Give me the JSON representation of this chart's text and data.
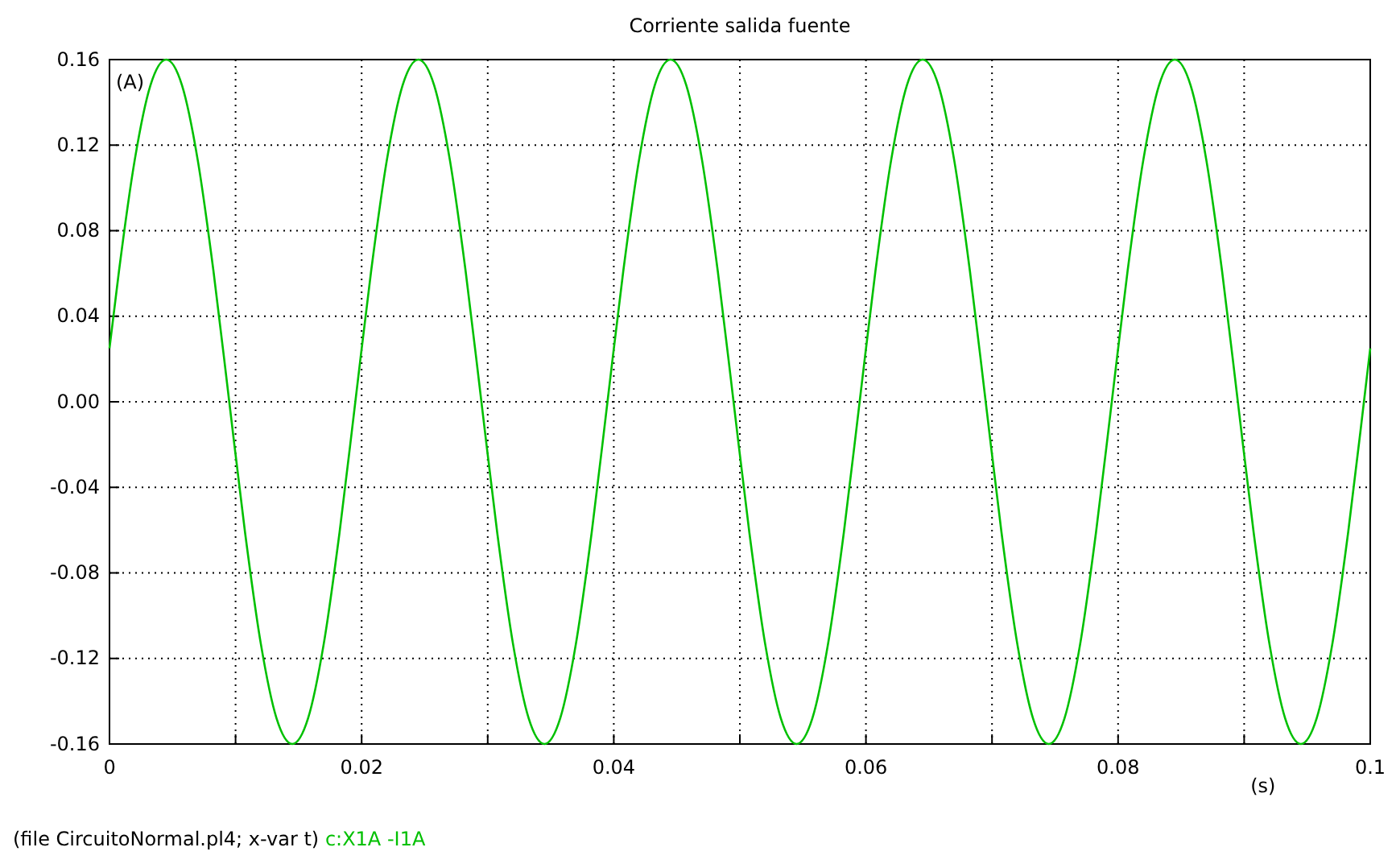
{
  "chart_data": {
    "type": "line",
    "title": "Corriente salida fuente",
    "xlabel": "(s)",
    "ylabel": "(A)",
    "annotations": [
      "(file CircuitoNormal.pl4; x-var t)"
    ],
    "x": [
      0,
      0.00075,
      0.002,
      0.00325,
      0.0045,
      0.00575,
      0.007,
      0.00825,
      0.0095,
      0.01075,
      0.012,
      0.01325,
      0.0145,
      0.01575,
      0.017,
      0.01825,
      0.0195,
      0.02075,
      0.022,
      0.02325,
      0.0245,
      0.02575,
      0.027,
      0.02825,
      0.0295,
      0.03075,
      0.032,
      0.03325,
      0.0345,
      0.03575,
      0.037,
      0.03825,
      0.0395,
      0.04075,
      0.042,
      0.04325,
      0.0445,
      0.04575,
      0.047,
      0.04825,
      0.0495,
      0.05075,
      0.052,
      0.05325,
      0.0545,
      0.05575,
      0.057,
      0.05825,
      0.0595,
      0.06075,
      0.062,
      0.06325,
      0.0645,
      0.06575,
      0.067,
      0.06825,
      0.0695,
      0.07075,
      0.072,
      0.07325,
      0.0745,
      0.07575,
      0.077,
      0.07825,
      0.0795,
      0.08075,
      0.082,
      0.08325,
      0.0845,
      0.08575,
      0.087,
      0.08825,
      0.0895,
      0.09075,
      0.092,
      0.09325,
      0.0945,
      0.09575,
      0.097,
      0.09825,
      0.0995,
      0.1
    ],
    "series": [
      {
        "name": "c:X1A  -I1A",
        "color": "#00c000",
        "values": [
          0.025,
          0.061,
          0.113,
          0.148,
          0.16,
          0.148,
          0.113,
          0.061,
          0,
          -0.061,
          -0.113,
          -0.148,
          -0.16,
          -0.148,
          -0.113,
          -0.061,
          0,
          0.061,
          0.113,
          0.148,
          0.16,
          0.148,
          0.113,
          0.061,
          0,
          -0.061,
          -0.113,
          -0.148,
          -0.16,
          -0.148,
          -0.113,
          -0.061,
          0,
          0.061,
          0.113,
          0.148,
          0.16,
          0.148,
          0.113,
          0.061,
          0,
          -0.061,
          -0.113,
          -0.148,
          -0.16,
          -0.148,
          -0.113,
          -0.061,
          0,
          0.061,
          0.113,
          0.148,
          0.16,
          0.148,
          0.113,
          0.061,
          0,
          -0.061,
          -0.113,
          -0.148,
          -0.16,
          -0.148,
          -0.113,
          -0.061,
          0,
          0.061,
          0.113,
          0.148,
          0.16,
          0.148,
          0.113,
          0.061,
          0,
          -0.061,
          -0.113,
          -0.148,
          -0.16,
          -0.148,
          -0.113,
          -0.061,
          0,
          0.025
        ]
      }
    ],
    "xlim": [
      0,
      0.1
    ],
    "xticks": [
      0,
      {
        "value": 0.01,
        "label": null
      },
      0.02,
      {
        "value": 0.03,
        "label": null
      },
      0.04,
      {
        "value": 0.05,
        "label": null
      },
      0.06,
      {
        "value": 0.07,
        "label": null
      },
      0.08,
      {
        "value": 0.09,
        "label": null
      },
      0.1
    ],
    "ylim": [
      -0.16,
      0.16
    ],
    "yticks": [
      -0.16,
      -0.12,
      -0.08,
      -0.04,
      {
        "value": 0,
        "label": "0.00"
      },
      0.04,
      0.08,
      0.12,
      0.16
    ],
    "grid": true,
    "legend": "bottom",
    "marker": "none",
    "line_style": "solid"
  }
}
